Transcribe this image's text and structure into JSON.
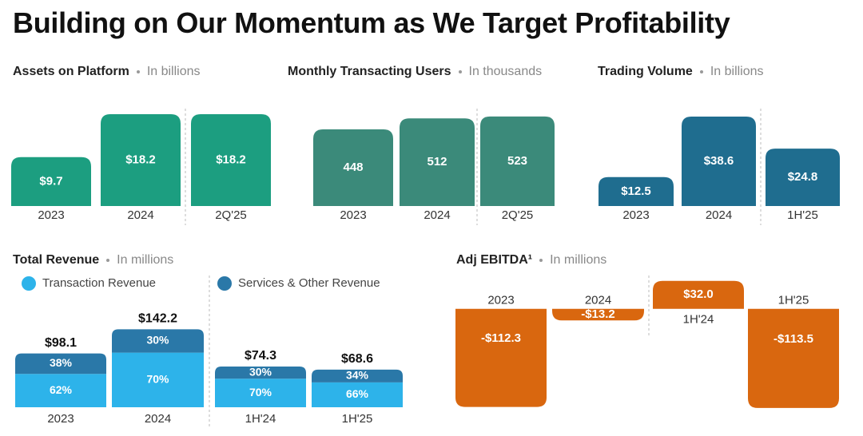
{
  "title": "Building on Our Momentum as We Target Profitability",
  "chart_data": [
    {
      "type": "bar",
      "title": "Assets on Platform",
      "subtitle": "In billions",
      "categories": [
        "2023",
        "2024",
        "2Q'25"
      ],
      "values": [
        9.7,
        18.2,
        18.2
      ],
      "value_labels": [
        "$9.7",
        "$18.2",
        "$18.2"
      ],
      "color": "#1c9e80",
      "ylim": [
        0,
        19
      ]
    },
    {
      "type": "bar",
      "title": "Monthly Transacting Users",
      "subtitle": "In thousands",
      "categories": [
        "2023",
        "2024",
        "2Q'25"
      ],
      "values": [
        448,
        512,
        523
      ],
      "color": "#3b8a7a",
      "ylim": [
        0,
        560
      ]
    },
    {
      "type": "bar",
      "title": "Trading Volume",
      "subtitle": "In billions",
      "categories": [
        "2023",
        "2024",
        "1H'25"
      ],
      "values": [
        12.5,
        38.6,
        24.8
      ],
      "value_labels": [
        "$12.5",
        "$38.6",
        "$24.8"
      ],
      "color": "#1f6d8f",
      "ylim": [
        0,
        40
      ]
    },
    {
      "type": "stacked_bar",
      "title": "Total Revenue",
      "subtitle": "In millions",
      "categories": [
        "2023",
        "2024",
        "1H'24",
        "1H'25"
      ],
      "totals": {
        "values": [
          98.1,
          142.2,
          74.3,
          68.6
        ],
        "value_labels": [
          "$98.1",
          "$142.2",
          "$74.3",
          "$68.6"
        ]
      },
      "series": [
        {
          "name": "Transaction Revenue",
          "color": "#2db3ea",
          "values": [
            62,
            70,
            70,
            66
          ],
          "value_labels": [
            "62%",
            "70%",
            "70%",
            "66%"
          ]
        },
        {
          "name": "Services & Other Revenue",
          "color": "#2a78a8",
          "values": [
            38,
            30,
            30,
            34
          ],
          "value_labels": [
            "38%",
            "30%",
            "30%",
            "34%"
          ]
        }
      ],
      "ylim": [
        0,
        150
      ]
    },
    {
      "type": "bar",
      "title": "Adj EBITDA¹",
      "subtitle": "In millions",
      "categories": [
        "2023",
        "2024",
        "1H'24",
        "1H'25"
      ],
      "values": [
        -112.3,
        -13.2,
        32.0,
        -113.5
      ],
      "value_labels": [
        "-$112.3",
        "-$13.2",
        "$32.0",
        "-$113.5"
      ],
      "color": "#d9670f",
      "ylim": [
        -120,
        40
      ]
    }
  ]
}
